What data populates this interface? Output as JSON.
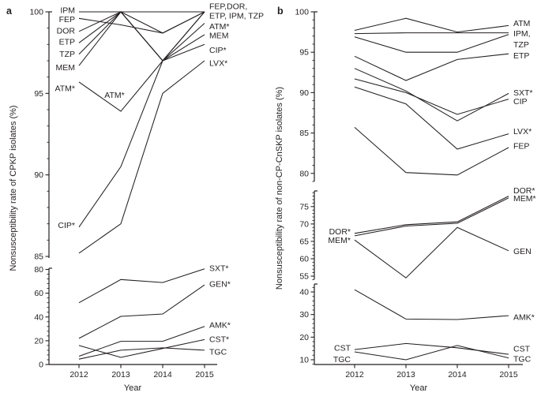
{
  "figure": {
    "xlabel": "Year",
    "panel_a_letter": "a",
    "panel_b_letter": "b",
    "ylabel_a": "Nonsusceptibility rate of CPKP isolates (%)",
    "ylabel_b": "Nonsusceptibility rate of non-CP-CnSKP isolates (%)"
  },
  "chart_data": [
    {
      "panel": "a",
      "type": "line",
      "title": "",
      "xlabel": "Year",
      "ylabel": "Nonsusceptibility rate of CPKP isolates (%)",
      "x": [
        2012,
        2013,
        2014,
        2015
      ],
      "axis_break": true,
      "grid": false,
      "legend_position": "inline-labels",
      "sections": [
        {
          "ylim": [
            85,
            100
          ],
          "ticks": [
            85,
            90,
            95,
            100
          ],
          "minor_step": 1
        },
        {
          "ylim": [
            0,
            81
          ],
          "ticks": [
            0,
            20,
            40,
            60,
            80
          ],
          "minor_step": 4
        }
      ],
      "series": [
        {
          "name": "IPM",
          "section": 0,
          "values": [
            100,
            100,
            100,
            100
          ]
        },
        {
          "name": "FEP",
          "section": 0,
          "values": [
            99.6,
            99.2,
            98.7,
            100
          ]
        },
        {
          "name": "DOR",
          "section": 0,
          "values": [
            98.8,
            100,
            97.0,
            100
          ]
        },
        {
          "name": "ETP",
          "section": 0,
          "values": [
            98.1,
            100,
            98.7,
            100
          ]
        },
        {
          "name": "TZP",
          "section": 0,
          "values": [
            97.4,
            100,
            97.0,
            100
          ]
        },
        {
          "name": "MEM",
          "section": 0,
          "values": [
            96.7,
            100,
            97.0,
            98.6
          ]
        },
        {
          "name": "ATM*",
          "section": 0,
          "values": [
            95.7,
            93.9,
            97.0,
            99.3
          ]
        },
        {
          "name": "CIP*",
          "section": 0,
          "values": [
            86.8,
            90.5,
            97.0,
            98.0
          ]
        },
        {
          "name": "LVX*",
          "section": 0,
          "values": [
            85.2,
            87.0,
            95.0,
            97.0
          ]
        },
        {
          "name": "SXT*",
          "section": 1,
          "values": [
            52,
            71.5,
            69,
            80.5
          ]
        },
        {
          "name": "GEN*",
          "section": 1,
          "values": [
            22,
            40.5,
            42.5,
            67
          ]
        },
        {
          "name": "AMK*",
          "section": 1,
          "values": [
            7,
            19.5,
            19.5,
            32
          ]
        },
        {
          "name": "CST*",
          "section": 1,
          "values": [
            16,
            6,
            13.5,
            21
          ]
        },
        {
          "name": "TGC",
          "section": 1,
          "values": [
            4.5,
            12,
            14,
            12
          ]
        }
      ],
      "annotations": [
        {
          "text": "IPM",
          "side": "left",
          "section": 0,
          "value": 100.1
        },
        {
          "text": "FEP",
          "side": "left",
          "section": 0,
          "value": 99.55
        },
        {
          "text": "DOR",
          "side": "left",
          "section": 0,
          "value": 98.85
        },
        {
          "text": "ETP",
          "side": "left",
          "section": 0,
          "value": 98.15
        },
        {
          "text": "TZP",
          "side": "left",
          "section": 0,
          "value": 97.4
        },
        {
          "text": "MEM",
          "side": "left",
          "section": 0,
          "value": 96.6
        },
        {
          "text": "ATM*",
          "side": "left",
          "section": 0,
          "value": 95.3
        },
        {
          "text": "CIP*",
          "side": "left",
          "section": 0,
          "value": 86.9
        },
        {
          "text": "ATM*",
          "side": "float",
          "section": 0,
          "value": 94.9,
          "year": 2012.85
        },
        {
          "text": "FEP,DOR,",
          "side": "right",
          "section": 0,
          "value": 100.35
        },
        {
          "text": "ETP, IPM, TZP",
          "side": "right",
          "section": 0,
          "value": 99.75
        },
        {
          "text": "ATM*",
          "side": "right",
          "section": 0,
          "value": 99.1
        },
        {
          "text": "MEM",
          "side": "right",
          "section": 0,
          "value": 98.55
        },
        {
          "text": "CIP*",
          "side": "right",
          "section": 0,
          "value": 97.65
        },
        {
          "text": "LVX*",
          "side": "right",
          "section": 0,
          "value": 96.85
        },
        {
          "text": "SXT*",
          "side": "right",
          "section": 1,
          "value": 80.9
        },
        {
          "text": "GEN*",
          "side": "right",
          "section": 1,
          "value": 67.8
        },
        {
          "text": "AMK*",
          "side": "right",
          "section": 1,
          "value": 33.2
        },
        {
          "text": "CST*",
          "side": "right",
          "section": 1,
          "value": 21.3
        },
        {
          "text": "TGC",
          "side": "right",
          "section": 1,
          "value": 10.6
        }
      ]
    },
    {
      "panel": "b",
      "type": "line",
      "title": "",
      "xlabel": "Year",
      "ylabel": "Nonsusceptibility rate of non-CP-CnSKP isolates (%)",
      "x": [
        2012,
        2013,
        2014,
        2015
      ],
      "axis_break": true,
      "grid": false,
      "legend_position": "inline-labels",
      "sections": [
        {
          "ylim": [
            79,
            100
          ],
          "ticks": [
            80,
            85,
            90,
            95,
            100
          ],
          "minor_step": 1
        },
        {
          "ylim": [
            54,
            79.5
          ],
          "ticks": [
            55,
            60,
            65,
            70,
            75
          ],
          "minor_step": 1
        },
        {
          "ylim": [
            7.9,
            43.5
          ],
          "ticks": [
            10,
            20,
            30,
            40
          ],
          "minor_step": 2
        }
      ],
      "series": [
        {
          "name": "ATM",
          "section": 0,
          "values": [
            97.7,
            99.2,
            97.5,
            98.3
          ]
        },
        {
          "name": "IPM",
          "section": 0,
          "values": [
            97.3,
            97.4,
            97.4,
            97.4
          ]
        },
        {
          "name": "TZP",
          "section": 0,
          "values": [
            96.9,
            95.0,
            95.0,
            97.2
          ]
        },
        {
          "name": "ETP",
          "section": 0,
          "values": [
            94.5,
            91.5,
            94.1,
            94.8
          ]
        },
        {
          "name": "SXT*",
          "section": 0,
          "values": [
            93.0,
            90.2,
            86.5,
            89.9
          ]
        },
        {
          "name": "CIP",
          "section": 0,
          "values": [
            91.7,
            90.0,
            87.3,
            89.2
          ]
        },
        {
          "name": "LVX*",
          "section": 0,
          "values": [
            90.7,
            88.6,
            83.0,
            84.9
          ]
        },
        {
          "name": "FEP",
          "section": 0,
          "values": [
            85.7,
            80.1,
            79.8,
            83.2
          ]
        },
        {
          "name": "DOR*",
          "section": 1,
          "values": [
            67.3,
            69.8,
            70.6,
            78.0
          ]
        },
        {
          "name": "MEM*",
          "section": 1,
          "values": [
            66.6,
            69.4,
            70.2,
            77.5
          ]
        },
        {
          "name": "GEN",
          "section": 1,
          "values": [
            65.4,
            54.5,
            69.0,
            62.3
          ]
        },
        {
          "name": "AMK*",
          "section": 2,
          "values": [
            41,
            28,
            27.8,
            29.5
          ]
        },
        {
          "name": "CST",
          "section": 2,
          "values": [
            14.5,
            17.2,
            15.3,
            12.4
          ]
        },
        {
          "name": "TGC",
          "section": 2,
          "values": [
            13.5,
            10.0,
            16.3,
            10.8
          ]
        }
      ],
      "annotations": [
        {
          "text": "DOR*",
          "side": "left",
          "section": 1,
          "value": 67.8
        },
        {
          "text": "MEM*",
          "side": "left",
          "section": 1,
          "value": 65.3
        },
        {
          "text": "CST",
          "side": "left",
          "section": 2,
          "value": 15.3
        },
        {
          "text": "TGC",
          "side": "left",
          "section": 2,
          "value": 10.2
        },
        {
          "text": "ATM",
          "side": "right",
          "section": 0,
          "value": 98.6
        },
        {
          "text": "IPM,",
          "side": "right",
          "section": 0,
          "value": 97.3
        },
        {
          "text": "TZP",
          "side": "right",
          "section": 0,
          "value": 95.95
        },
        {
          "text": "ETP",
          "side": "right",
          "section": 0,
          "value": 94.6
        },
        {
          "text": "SXT*",
          "side": "right",
          "section": 0,
          "value": 90.0
        },
        {
          "text": "CIP",
          "side": "right",
          "section": 0,
          "value": 88.9
        },
        {
          "text": "LVX*",
          "side": "right",
          "section": 0,
          "value": 85.2
        },
        {
          "text": "FEP",
          "side": "right",
          "section": 0,
          "value": 83.4
        },
        {
          "text": "DOR*",
          "side": "right",
          "section": 1,
          "value": 79.6
        },
        {
          "text": "MEM*",
          "side": "right",
          "section": 1,
          "value": 77.3
        },
        {
          "text": "GEN",
          "side": "right",
          "section": 1,
          "value": 62.1
        },
        {
          "text": "AMK*",
          "side": "right",
          "section": 2,
          "value": 28.9
        },
        {
          "text": "CST",
          "side": "right",
          "section": 2,
          "value": 14.9
        },
        {
          "text": "TGC",
          "side": "right",
          "section": 2,
          "value": 10.3
        }
      ]
    }
  ]
}
